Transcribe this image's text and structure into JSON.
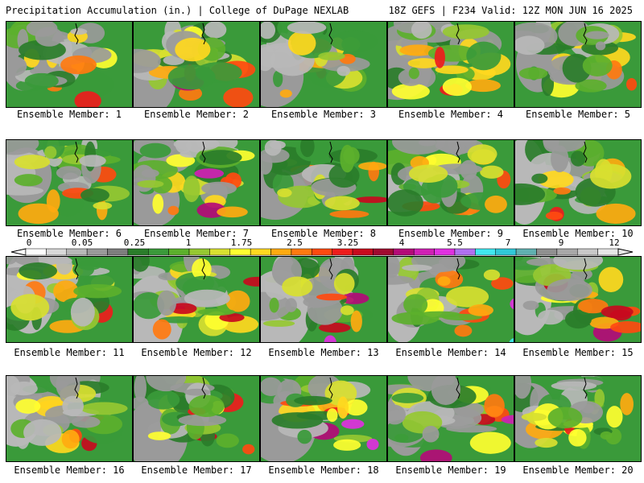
{
  "header": {
    "title_left": "Precipitation Accumulation (in.) | College of DuPage NEXLAB",
    "title_right": "18Z GEFS | F234 Valid: 12Z MON JUN 16 2025"
  },
  "members": [
    {
      "label": "Ensemble Member: 1"
    },
    {
      "label": "Ensemble Member: 2"
    },
    {
      "label": "Ensemble Member: 3"
    },
    {
      "label": "Ensemble Member: 4"
    },
    {
      "label": "Ensemble Member: 5"
    },
    {
      "label": "Ensemble Member: 6"
    },
    {
      "label": "Ensemble Member: 7"
    },
    {
      "label": "Ensemble Member: 8"
    },
    {
      "label": "Ensemble Member: 9"
    },
    {
      "label": "Ensemble Member: 10"
    },
    {
      "label": "Ensemble Member: 11"
    },
    {
      "label": "Ensemble Member: 12"
    },
    {
      "label": "Ensemble Member: 13"
    },
    {
      "label": "Ensemble Member: 14"
    },
    {
      "label": "Ensemble Member: 15"
    },
    {
      "label": "Ensemble Member: 16"
    },
    {
      "label": "Ensemble Member: 17"
    },
    {
      "label": "Ensemble Member: 18"
    },
    {
      "label": "Ensemble Member: 19"
    },
    {
      "label": "Ensemble Member: 20"
    }
  ],
  "colorbar": {
    "labels": [
      "0",
      "0.05",
      "0.25",
      "1",
      "1.75",
      "2.5",
      "3.25",
      "4",
      "5.5",
      "7",
      "9",
      "12"
    ],
    "colors": [
      "#ffffff",
      "#d8d8d8",
      "#b8b8b8",
      "#9a9a9a",
      "#7e7e7e",
      "#2a7d2a",
      "#3a9a3a",
      "#5cb02c",
      "#96c832",
      "#d8e030",
      "#ffff30",
      "#ffd820",
      "#ffaa10",
      "#ff7a10",
      "#ff4a10",
      "#ee1c1c",
      "#c80a1e",
      "#a00a30",
      "#b40a78",
      "#d020b4",
      "#e030e0",
      "#b070f0",
      "#40e8f0",
      "#30c8d8",
      "#60b0b0",
      "#909090",
      "#a8a8a8",
      "#c8c8c8",
      "#e6e6e6"
    ]
  }
}
